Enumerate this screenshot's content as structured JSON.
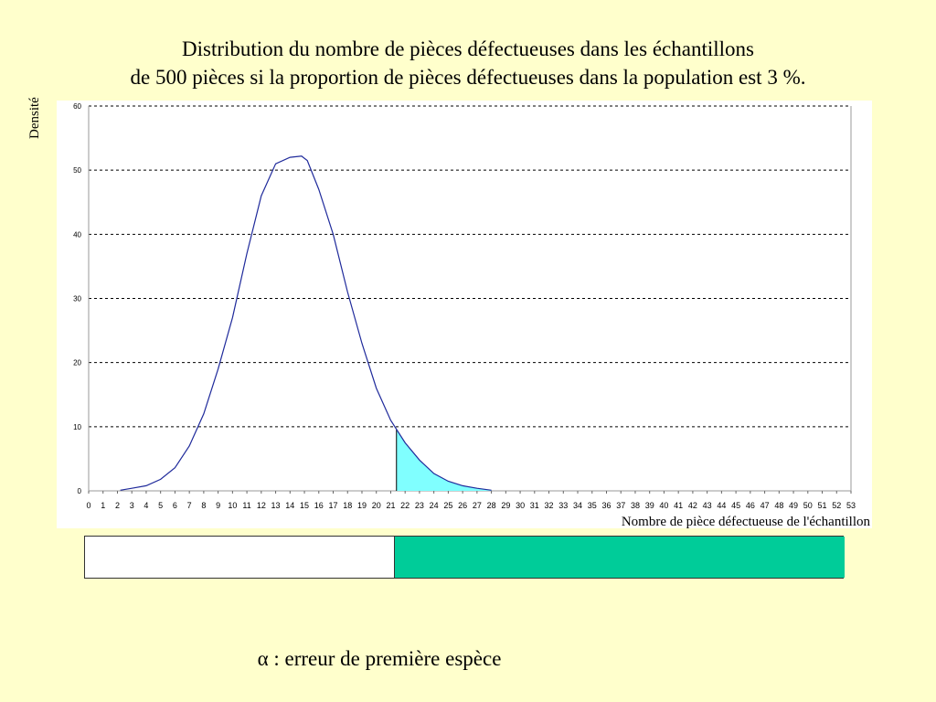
{
  "colors": {
    "background": "#ffffcc",
    "curve": "#1f2a9b",
    "tail_fill": "#80ffff",
    "rejection_zone": "#00cc99",
    "grid": "#000000"
  },
  "title_lines": [
    "Distribution du nombre de pièces défectueuses dans les échantillons",
    "de 500 pièces si la proportion de pièces défectueuses dans la population est 3 %."
  ],
  "footer": {
    "alpha_text": "α : erreur de première espèce"
  },
  "decision_bar": {
    "acceptance_upper": 21,
    "rejection_lower": 21,
    "rejection_upper": 53
  },
  "chart_data": {
    "type": "line",
    "title": "Distribution du nombre de pièces défectueuses dans les échantillons de 500 pièces si la proportion de pièces défectueuses dans la population est 3 %.",
    "xlabel": "Nombre de pièce défectueuse de l'échantillon",
    "ylabel": "Densité",
    "xlim": [
      0,
      53
    ],
    "ylim": [
      0,
      60
    ],
    "y_ticks": [
      0,
      10,
      20,
      30,
      40,
      50,
      60
    ],
    "x_ticks": [
      "0",
      "1",
      "2",
      "3",
      "4",
      "5",
      "6",
      "7",
      "8",
      "9",
      "10",
      "11",
      "12",
      "13",
      "14",
      "15",
      "16",
      "17",
      "18",
      "19",
      "20",
      "21",
      "22",
      "23",
      "24",
      "25",
      "26",
      "27",
      "28",
      "29",
      "30",
      "31",
      "32",
      "33",
      "34",
      "35",
      "36",
      "37",
      "38",
      "39",
      "40",
      "41",
      "42",
      "43",
      "44",
      "45",
      "46",
      "47",
      "48",
      "49",
      "50",
      "51",
      "52",
      "53"
    ],
    "grid": "horizontal-dashed",
    "shaded_from_x": 21.4,
    "series": [
      {
        "x": [
          2.2,
          3,
          4,
          5,
          6,
          7,
          8,
          9,
          10,
          11,
          12,
          13,
          14,
          14.8,
          15.2,
          16,
          17,
          18,
          19,
          20,
          21,
          22,
          23,
          24,
          25,
          26,
          27,
          28
        ],
        "values": [
          0.1,
          0.4,
          0.8,
          1.8,
          3.6,
          7,
          12,
          19,
          27,
          37,
          46,
          51,
          52,
          52.2,
          51.5,
          47,
          40,
          31,
          23,
          16,
          11,
          7.5,
          4.8,
          2.7,
          1.5,
          0.8,
          0.4,
          0.1
        ]
      }
    ]
  }
}
